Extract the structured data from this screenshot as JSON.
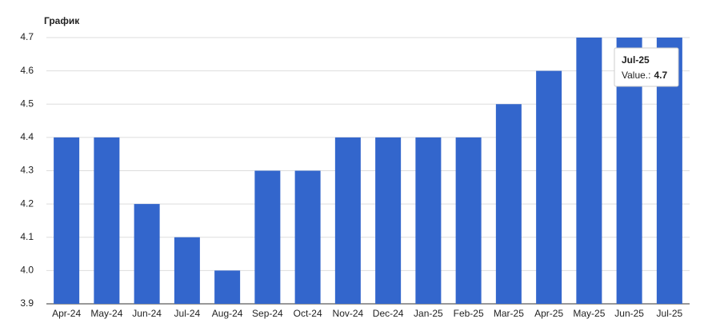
{
  "chart_data": {
    "type": "bar",
    "title": "График",
    "categories": [
      "Apr-24",
      "May-24",
      "Jun-24",
      "Jul-24",
      "Aug-24",
      "Sep-24",
      "Oct-24",
      "Nov-24",
      "Dec-24",
      "Jan-25",
      "Feb-25",
      "Mar-25",
      "Apr-25",
      "May-25",
      "Jun-25",
      "Jul-25"
    ],
    "values": [
      4.4,
      4.4,
      4.2,
      4.1,
      4.0,
      4.3,
      4.3,
      4.4,
      4.4,
      4.4,
      4.4,
      4.5,
      4.6,
      4.7,
      4.7,
      4.7
    ],
    "color": "#3366cc",
    "ylim": [
      3.9,
      4.7
    ],
    "yticks": [
      3.9,
      {
        "value": 4,
        "label": "4.0"
      },
      4.1,
      4.2,
      4.3,
      4.4,
      4.5,
      4.6,
      4.7
    ],
    "grid": true,
    "tooltip_label": "Value.:"
  }
}
